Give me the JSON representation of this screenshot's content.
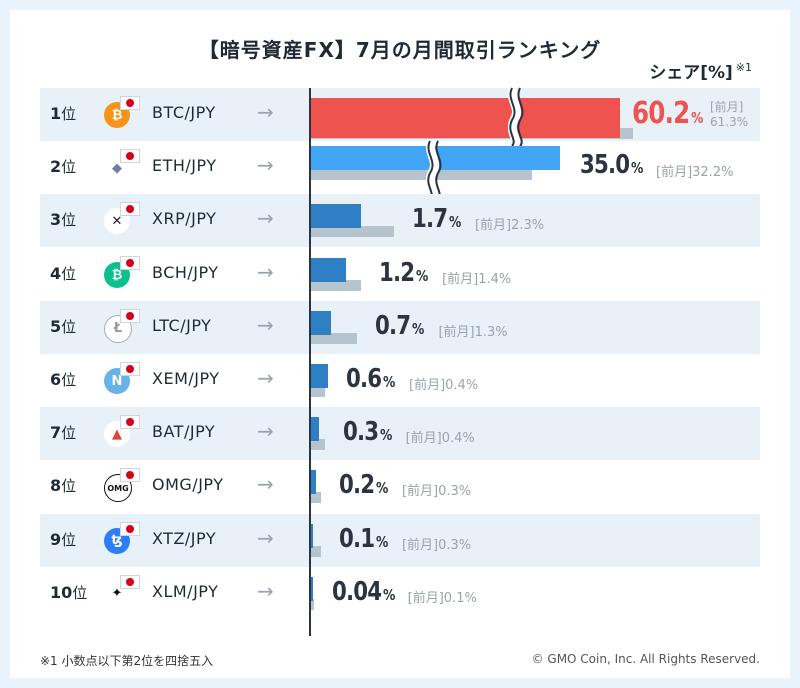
{
  "chart_data": {
    "type": "bar",
    "title": "【暗号資産FX】7月の月間取引ランキング",
    "ylabel": "シェア[%]",
    "ylabel_note": "※1",
    "prev_prefix": "[前月]",
    "unit": "%",
    "categories": [
      "BTC/JPY",
      "ETH/JPY",
      "XRP/JPY",
      "BCH/JPY",
      "LTC/JPY",
      "XEM/JPY",
      "BAT/JPY",
      "OMG/JPY",
      "XTZ/JPY",
      "XLM/JPY"
    ],
    "ranks": [
      "1",
      "2",
      "3",
      "4",
      "5",
      "6",
      "7",
      "8",
      "9",
      "10"
    ],
    "rank_suffix": "位",
    "series": [
      {
        "name": "current",
        "values": [
          60.2,
          35.0,
          1.7,
          1.2,
          0.7,
          0.6,
          0.3,
          0.2,
          0.1,
          0.04
        ],
        "labels": [
          "60.2",
          "35.0",
          "1.7",
          "1.2",
          "0.7",
          "0.6",
          "0.3",
          "0.2",
          "0.1",
          "0.04"
        ]
      },
      {
        "name": "previous",
        "values": [
          61.3,
          32.2,
          2.3,
          1.4,
          1.3,
          0.4,
          0.4,
          0.3,
          0.3,
          0.1
        ],
        "labels": [
          "61.3%",
          "32.2%",
          "2.3%",
          "1.4%",
          "1.3%",
          "0.4%",
          "0.4%",
          "0.3%",
          "0.3%",
          "0.1%"
        ]
      }
    ],
    "icons": [
      "bitcoin-icon",
      "ethereum-icon",
      "xrp-icon",
      "bitcoin-cash-icon",
      "litecoin-icon",
      "nem-icon",
      "bat-icon",
      "omg-icon",
      "tezos-icon",
      "stellar-icon"
    ],
    "break_axis_rows": [
      0,
      1
    ],
    "colors": {
      "top": "#ef5350",
      "highlight": "#42a5f5",
      "cur": "#2f7fc4",
      "prev": "#b6c4cd"
    }
  },
  "footer": {
    "note": "※1 小数点以下第2位を四捨五入",
    "copyright": "© GMO Coin, Inc. All Rights Reserved."
  }
}
